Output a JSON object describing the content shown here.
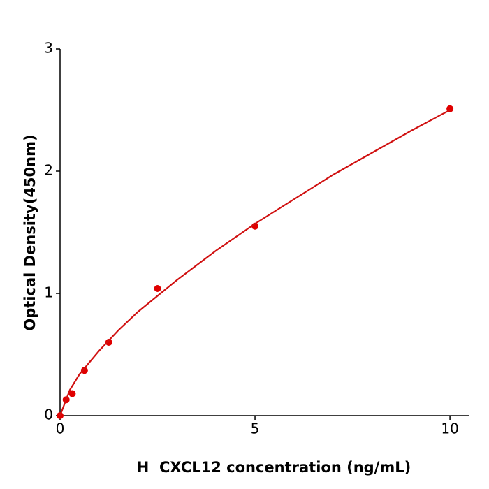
{
  "chart_data": {
    "type": "scatter",
    "x_label": "H  CXCL12 concentration (ng/mL)",
    "y_label": "Optical Density(450nm)",
    "xlim": [
      0,
      10.5
    ],
    "ylim": [
      0,
      3
    ],
    "xticks": [
      0,
      5,
      10
    ],
    "yticks": [
      0,
      1,
      2,
      3
    ],
    "series": [
      {
        "type": "scatter",
        "color": "#e00000",
        "x": [
          0,
          0.156,
          0.3125,
          0.625,
          1.25,
          2.5,
          5,
          10
        ],
        "values": [
          0,
          0.13,
          0.18,
          0.37,
          0.6,
          1.04,
          1.55,
          2.51
        ]
      },
      {
        "type": "line",
        "color": "#d01010",
        "x": [
          0,
          0.25,
          0.5,
          1,
          1.5,
          2,
          3,
          4,
          5,
          6,
          7,
          8,
          9,
          10
        ],
        "values": [
          0,
          0.21,
          0.34,
          0.53,
          0.7,
          0.85,
          1.11,
          1.35,
          1.57,
          1.77,
          1.97,
          2.15,
          2.33,
          2.5
        ]
      }
    ]
  }
}
